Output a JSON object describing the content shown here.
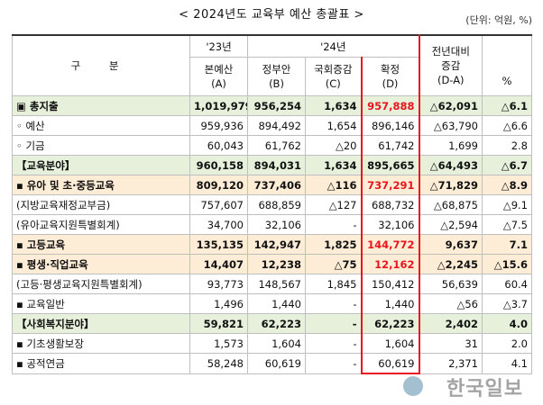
{
  "title": "< 2024년도 교육부 예산 총괄표 >",
  "unit": "(단위: 억원, %)",
  "header": {
    "gubun": "구 분",
    "y23": "'23년",
    "y24": "'24년",
    "col_a": [
      "본예산",
      "(A)"
    ],
    "col_b": [
      "정부안",
      "(B)"
    ],
    "col_c": [
      "국회증감",
      "(C)"
    ],
    "col_d": [
      "확정",
      "(D)"
    ],
    "col_diff": [
      "전년대비",
      "증감",
      "(D-A)"
    ],
    "col_pct": "%"
  },
  "rows": [
    {
      "label": "▣ 총지출",
      "a": "1,019,979",
      "b": "956,254",
      "c": "1,634",
      "d": "957,888",
      "diff": "△62,091",
      "pct": "△6.1",
      "style": "green",
      "dred": true
    },
    {
      "label": "◦ 예산",
      "a": "959,936",
      "b": "894,492",
      "c": "1,654",
      "d": "896,146",
      "diff": "△63,790",
      "pct": "△6.6",
      "style": "",
      "dred": false
    },
    {
      "label": "◦ 기금",
      "a": "60,043",
      "b": "61,762",
      "c": "△20",
      "d": "61,742",
      "diff": "1,699",
      "pct": "2.8",
      "style": "",
      "dred": false
    },
    {
      "label": "【교육분야】",
      "a": "960,158",
      "b": "894,031",
      "c": "1,634",
      "d": "895,665",
      "diff": "△64,493",
      "pct": "△6.7",
      "style": "green",
      "dred": false
    },
    {
      "label": "▪ 유아 및 초·중등교육",
      "a": "809,120",
      "b": "737,406",
      "c": "△116",
      "d": "737,291",
      "diff": "△71,829",
      "pct": "△8.9",
      "style": "orange",
      "dred": true
    },
    {
      "label": "(지방교육재정교부금)",
      "a": "757,607",
      "b": "688,859",
      "c": "△127",
      "d": "688,732",
      "diff": "△68,875",
      "pct": "△9.1",
      "style": "",
      "dred": false
    },
    {
      "label": "(유아교육지원특별회계)",
      "a": "34,700",
      "b": "32,106",
      "c": "-",
      "d": "32,106",
      "diff": "△2,594",
      "pct": "△7.5",
      "style": "",
      "dred": false
    },
    {
      "label": "▪ 고등교육",
      "a": "135,135",
      "b": "142,947",
      "c": "1,825",
      "d": "144,772",
      "diff": "9,637",
      "pct": "7.1",
      "style": "orange",
      "dred": true
    },
    {
      "label": "▪ 평생·직업교육",
      "a": "14,407",
      "b": "12,238",
      "c": "△75",
      "d": "12,162",
      "diff": "△2,245",
      "pct": "△15.6",
      "style": "orange",
      "dred": true
    },
    {
      "label": "(고등·평생교육지원특별회계)",
      "a": "93,773",
      "b": "148,567",
      "c": "1,845",
      "d": "150,412",
      "diff": "56,639",
      "pct": "60.4",
      "style": "",
      "dred": false
    },
    {
      "label": "▪ 교육일반",
      "a": "1,496",
      "b": "1,440",
      "c": "-",
      "d": "1,440",
      "diff": "△56",
      "pct": "△3.7",
      "style": "",
      "dred": false
    },
    {
      "label": "【사회복지분야】",
      "a": "59,821",
      "b": "62,223",
      "c": "-",
      "d": "62,223",
      "diff": "2,402",
      "pct": "4.0",
      "style": "green",
      "dred": false
    },
    {
      "label": "▪ 기초생활보장",
      "a": "1,573",
      "b": "1,604",
      "c": "-",
      "d": "1,604",
      "diff": "31",
      "pct": "2.0",
      "style": "",
      "dred": false
    },
    {
      "label": "▪ 공적연금",
      "a": "58,248",
      "b": "60,619",
      "c": "-",
      "d": "60,619",
      "diff": "2,371",
      "pct": "4.1",
      "style": "",
      "dred": false
    }
  ],
  "watermark": "한국일보"
}
